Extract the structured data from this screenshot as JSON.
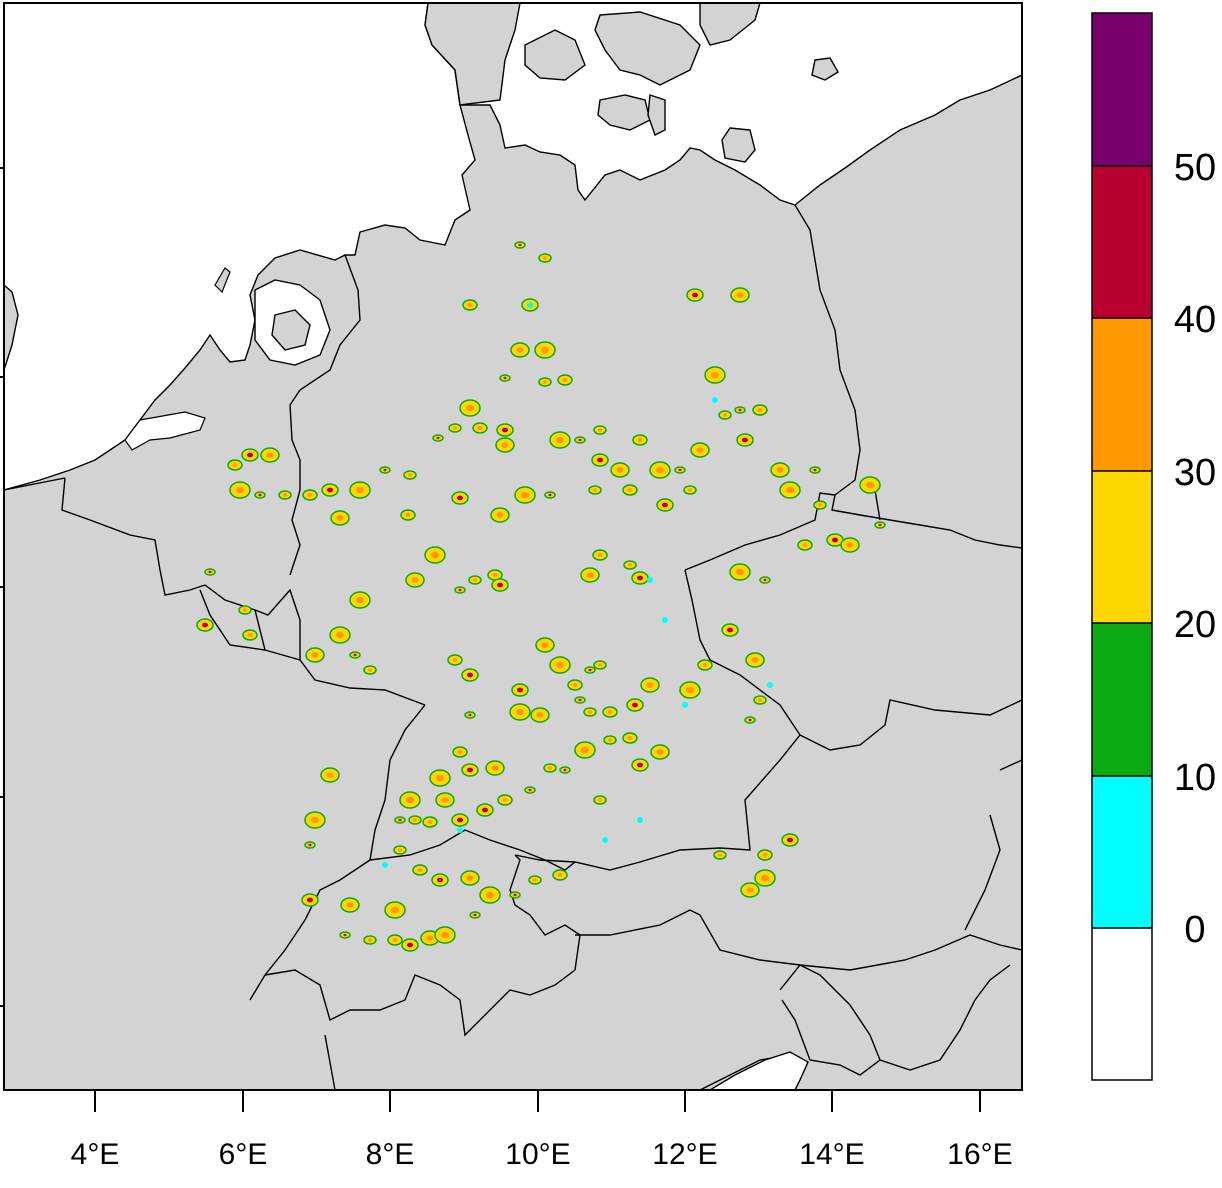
{
  "map": {
    "x_axis": {
      "tick_labels": [
        "4°E",
        "6°E",
        "8°E",
        "10°E",
        "12°E",
        "14°E",
        "16°E"
      ]
    },
    "colors": {
      "land": "#d3d3d3",
      "sea": "#ffffff",
      "border": "#000000"
    }
  },
  "colorbar": {
    "levels": [
      {
        "label": "",
        "color": "#ffffff"
      },
      {
        "label": "0",
        "color": "#00ffff"
      },
      {
        "label": "10",
        "color": "#0aaa14"
      },
      {
        "label": "20",
        "color": "#ffd700"
      },
      {
        "label": "30",
        "color": "#ff9900"
      },
      {
        "label": "40",
        "color": "#b8002e"
      },
      {
        "label": "50",
        "color": "#7a006e"
      }
    ]
  }
}
